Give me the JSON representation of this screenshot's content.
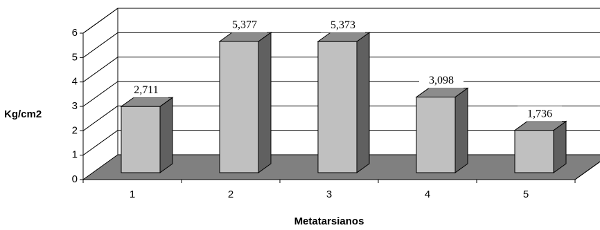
{
  "chart_data": {
    "type": "bar",
    "style": "3d",
    "categories": [
      "1",
      "2",
      "3",
      "4",
      "5"
    ],
    "values": [
      2.711,
      5.377,
      5.373,
      3.098,
      1.736
    ],
    "data_labels": [
      "2,711",
      "5,377",
      "5,373",
      "3,098",
      "1,736"
    ],
    "xlabel": "Metatarsianos",
    "ylabel": "Kg/cm2",
    "ylim": [
      0,
      6
    ],
    "yticks": [
      "0",
      "1",
      "2",
      "3",
      "4",
      "5",
      "6"
    ],
    "grid": true,
    "legend": "none",
    "colors": {
      "bar_front": "#c0c0c0",
      "bar_top": "#8c8c8c",
      "bar_side": "#606060",
      "floor": "#808080"
    }
  }
}
